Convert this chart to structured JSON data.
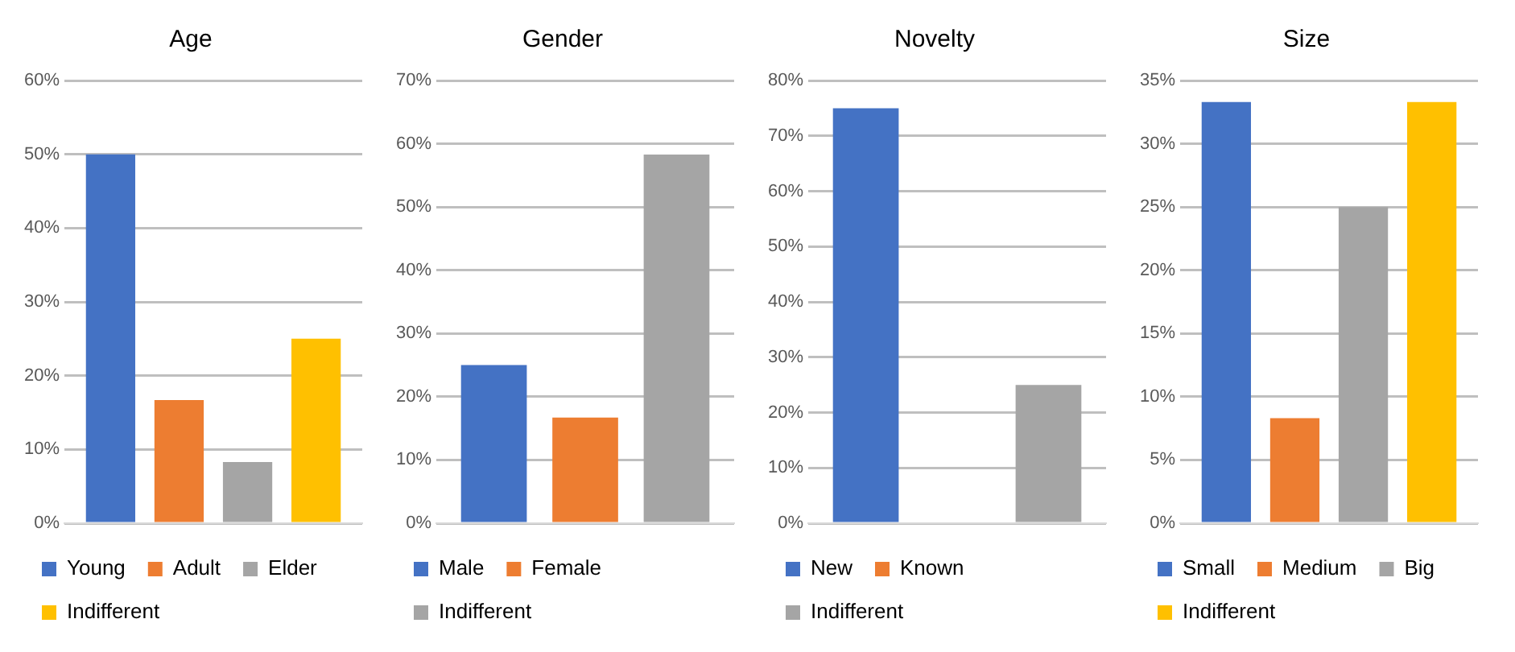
{
  "chart_data": [
    {
      "type": "bar",
      "title": "Age",
      "categories": [
        null
      ],
      "series": [
        {
          "name": "Young",
          "color": "#4472c4",
          "values": [
            50
          ]
        },
        {
          "name": "Adult",
          "color": "#ed7d31",
          "values": [
            16.7
          ]
        },
        {
          "name": "Elder",
          "color": "#a5a5a5",
          "values": [
            8.3
          ]
        },
        {
          "name": "Indifferent",
          "color": "#ffc000",
          "values": [
            25
          ]
        }
      ],
      "ylim": [
        0,
        60
      ],
      "yticks": [
        {
          "value": 0,
          "label": "0%"
        },
        {
          "value": 10,
          "label": "10%"
        },
        {
          "value": 20,
          "label": "20%"
        },
        {
          "value": 30,
          "label": "30%"
        },
        {
          "value": 40,
          "label": "40%"
        },
        {
          "value": 50,
          "label": "50%"
        },
        {
          "value": 60,
          "label": "60%"
        }
      ],
      "grid": "y",
      "legend": "bottom",
      "tick_labels": "y"
    },
    {
      "type": "bar",
      "title": "Gender",
      "categories": [
        null
      ],
      "series": [
        {
          "name": "Male",
          "color": "#4472c4",
          "values": [
            25
          ]
        },
        {
          "name": "Female",
          "color": "#ed7d31",
          "values": [
            16.7
          ]
        },
        {
          "name": "Indifferent",
          "color": "#a5a5a5",
          "values": [
            58.3
          ]
        }
      ],
      "ylim": [
        0,
        70
      ],
      "yticks": [
        {
          "value": 0,
          "label": "0%"
        },
        {
          "value": 10,
          "label": "10%"
        },
        {
          "value": 20,
          "label": "20%"
        },
        {
          "value": 30,
          "label": "30%"
        },
        {
          "value": 40,
          "label": "40%"
        },
        {
          "value": 50,
          "label": "50%"
        },
        {
          "value": 60,
          "label": "60%"
        },
        {
          "value": 70,
          "label": "70%"
        }
      ],
      "grid": "y",
      "legend": "bottom",
      "tick_labels": "y"
    },
    {
      "type": "bar",
      "title": "Novelty",
      "categories": [
        null
      ],
      "series": [
        {
          "name": "New",
          "color": "#4472c4",
          "values": [
            75
          ]
        },
        {
          "name": "Known",
          "color": "#ed7d31",
          "values": [
            0
          ]
        },
        {
          "name": "Indifferent",
          "color": "#a5a5a5",
          "values": [
            25
          ]
        }
      ],
      "ylim": [
        0,
        80
      ],
      "yticks": [
        {
          "value": 0,
          "label": "0%"
        },
        {
          "value": 10,
          "label": "10%"
        },
        {
          "value": 20,
          "label": "20%"
        },
        {
          "value": 30,
          "label": "30%"
        },
        {
          "value": 40,
          "label": "40%"
        },
        {
          "value": 50,
          "label": "50%"
        },
        {
          "value": 60,
          "label": "60%"
        },
        {
          "value": 70,
          "label": "70%"
        },
        {
          "value": 80,
          "label": "80%"
        }
      ],
      "grid": "y",
      "legend": "bottom",
      "tick_labels": "y"
    },
    {
      "type": "bar",
      "title": "Size",
      "categories": [
        null
      ],
      "series": [
        {
          "name": "Small",
          "color": "#4472c4",
          "values": [
            33.3
          ]
        },
        {
          "name": "Medium",
          "color": "#ed7d31",
          "values": [
            8.3
          ]
        },
        {
          "name": "Big",
          "color": "#a5a5a5",
          "values": [
            25
          ]
        },
        {
          "name": "Indifferent",
          "color": "#ffc000",
          "values": [
            33.3
          ]
        }
      ],
      "ylim": [
        0,
        35
      ],
      "yticks": [
        {
          "value": 0,
          "label": "0%"
        },
        {
          "value": 5,
          "label": "5%"
        },
        {
          "value": 10,
          "label": "10%"
        },
        {
          "value": 15,
          "label": "15%"
        },
        {
          "value": 20,
          "label": "20%"
        },
        {
          "value": 25,
          "label": "25%"
        },
        {
          "value": 30,
          "label": "30%"
        },
        {
          "value": 35,
          "label": "35%"
        }
      ],
      "grid": "y",
      "legend": "bottom",
      "tick_labels": "y"
    }
  ]
}
